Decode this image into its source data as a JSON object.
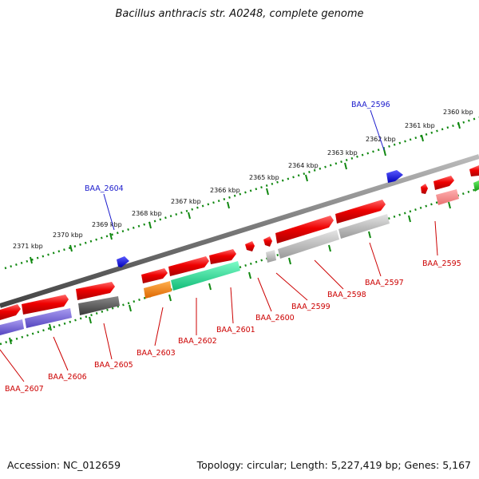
{
  "header": {
    "title": "Bacillus anthracis str. A0248, complete genome"
  },
  "footer": {
    "accession": "Accession: NC_012659",
    "topology": "Topology: circular; Length: 5,227,419 bp; Genes: 5,167"
  },
  "scale": {
    "tick_labels": [
      "2360 kbp",
      "2361 kbp",
      "2362 kbp",
      "2363 kbp",
      "2364 kbp",
      "2365 kbp",
      "2366 kbp",
      "2367 kbp",
      "2368 kbp",
      "2369 kbp",
      "2370 kbp",
      "2371 kbp"
    ]
  },
  "genes": {
    "labels": [
      "BAA_2596",
      "BAA_2604",
      "BAA_2595",
      "BAA_2597",
      "BAA_2598",
      "BAA_2599",
      "BAA_2600",
      "BAA_2601",
      "BAA_2602",
      "BAA_2603",
      "BAA_2605",
      "BAA_2606",
      "BAA_2607"
    ]
  },
  "colors": {
    "forward_gene": "#ee0000",
    "backbone": "#7a7a7a",
    "tick": "#118811",
    "label_red": "#cc0000",
    "label_blue": "#1a1acc",
    "gene_blue": "#0000ee",
    "gene_purple": "#6f5fd8",
    "gene_dark": "#555555",
    "gene_orange": "#ff8800",
    "gene_teal": "#22dd99",
    "gene_grey": "#bbbbbb",
    "gene_green": "#22bb22"
  }
}
